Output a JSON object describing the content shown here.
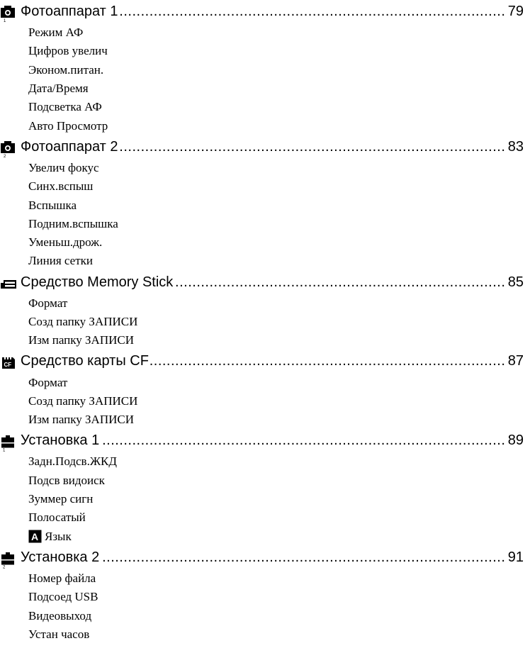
{
  "sections": [
    {
      "icon": "camera-icon",
      "subscript": "1",
      "title": "Фотоаппарат 1",
      "page": "79",
      "items": [
        "Режим АФ",
        "Цифров увелич",
        "Эконом.питан.",
        "Дата/Время",
        "Подсветка АФ",
        "Авто Просмотр"
      ]
    },
    {
      "icon": "camera-icon",
      "subscript": "2",
      "title": "Фотоаппарат 2",
      "page": "83",
      "items": [
        "Увелич фокус",
        "Синх.вспыш",
        "Вспышка",
        "Подним.вспышка",
        "Уменьш.дрож.",
        "Линия сетки"
      ]
    },
    {
      "icon": "memory-stick-icon",
      "title": "Средство Memory Stick",
      "page": "85",
      "items": [
        "Формат",
        "Созд папку ЗАПИСИ",
        "Изм папку ЗАПИСИ"
      ]
    },
    {
      "icon": "cf-card-icon",
      "icon_text": "CF",
      "title": "Средство карты CF",
      "page": "87",
      "items": [
        "Формат",
        "Созд папку ЗАПИСИ",
        "Изм папку ЗАПИСИ"
      ]
    },
    {
      "icon": "setup-toolbox-icon",
      "subscript": "1",
      "title": "Установка 1",
      "page": "89",
      "items": [
        "Задн.Подсв.ЖКД",
        "Подсв видоиск",
        "Зуммер сигн",
        "Полосатый",
        "Язык"
      ],
      "language_icon_letter": "A"
    },
    {
      "icon": "setup-toolbox-icon",
      "subscript": "2",
      "title": "Установка 2",
      "page": "91",
      "items": [
        "Номер файла",
        "Подсоед USB",
        "Видеовыход",
        "Устан часов"
      ]
    }
  ]
}
